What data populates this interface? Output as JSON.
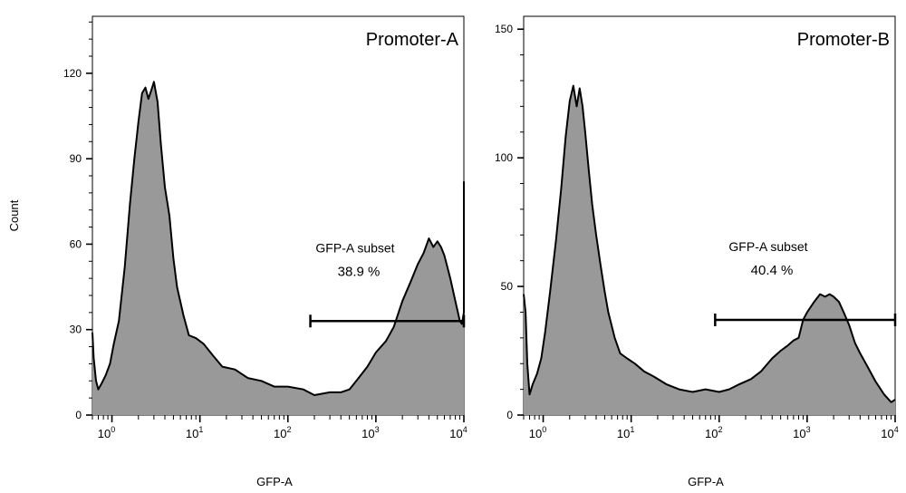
{
  "chart_data": [
    {
      "type": "area",
      "title": "Promoter-A",
      "xlabel": "GFP-A",
      "ylabel": "Count",
      "x_scale": "log",
      "xlim": [
        0.6,
        10000
      ],
      "ylim": [
        0,
        140
      ],
      "x_ticks": [
        1,
        10,
        100,
        1000,
        10000
      ],
      "x_tick_labels": [
        {
          "base": "10",
          "exp": "0"
        },
        {
          "base": "10",
          "exp": "1"
        },
        {
          "base": "10",
          "exp": "2"
        },
        {
          "base": "10",
          "exp": "3"
        },
        {
          "base": "10",
          "exp": "4"
        }
      ],
      "y_ticks": [
        0,
        30,
        60,
        90,
        120
      ],
      "y_tick_labels": [
        "0",
        "30",
        "60",
        "90",
        "120"
      ],
      "grid": false,
      "color": "#999999",
      "gate": {
        "label": "GFP-A subset",
        "percent": "38.9 %",
        "x_range": [
          180,
          10000
        ],
        "y": 33
      },
      "x": [
        0.6,
        0.62,
        0.66,
        0.7,
        0.76,
        0.85,
        0.95,
        1.05,
        1.2,
        1.4,
        1.6,
        1.8,
        2.0,
        2.2,
        2.4,
        2.6,
        2.8,
        3.0,
        3.3,
        3.6,
        4.0,
        4.5,
        5.0,
        5.5,
        6.5,
        7.5,
        9,
        11,
        14,
        18,
        25,
        35,
        50,
        70,
        100,
        150,
        200,
        300,
        400,
        500,
        600,
        800,
        1000,
        1300,
        1600,
        2000,
        2500,
        3000,
        3500,
        4000,
        4500,
        5000,
        5500,
        6000,
        7000,
        8000,
        9000,
        9500,
        10000,
        10000
      ],
      "values": [
        29,
        20,
        12,
        9,
        11,
        14,
        18,
        25,
        33,
        52,
        74,
        90,
        103,
        113,
        115,
        111,
        114,
        117,
        110,
        95,
        80,
        70,
        55,
        45,
        35,
        28,
        27,
        25,
        21,
        17,
        16,
        13,
        12,
        10,
        10,
        9,
        7,
        8,
        8,
        9,
        12,
        17,
        22,
        26,
        31,
        40,
        47,
        53,
        57,
        62,
        59,
        61,
        59,
        56,
        48,
        40,
        33,
        32,
        36,
        82
      ]
    },
    {
      "type": "area",
      "title": "Promoter-B",
      "xlabel": "GFP-A",
      "ylabel": "",
      "x_scale": "log",
      "xlim": [
        0.6,
        10000
      ],
      "ylim": [
        0,
        155
      ],
      "x_ticks": [
        1,
        10,
        100,
        1000,
        10000
      ],
      "x_tick_labels": [
        {
          "base": "10",
          "exp": "0"
        },
        {
          "base": "10",
          "exp": "1"
        },
        {
          "base": "10",
          "exp": "2"
        },
        {
          "base": "10",
          "exp": "3"
        },
        {
          "base": "10",
          "exp": "4"
        }
      ],
      "y_ticks": [
        0,
        50,
        100,
        150
      ],
      "y_tick_labels": [
        "0",
        "50",
        "100",
        "150"
      ],
      "grid": false,
      "color": "#999999",
      "gate": {
        "label": "GFP-A subset",
        "percent": "40.4 %",
        "x_range": [
          90,
          10000
        ],
        "y": 37
      },
      "x": [
        0.6,
        0.63,
        0.66,
        0.7,
        0.76,
        0.85,
        0.95,
        1.05,
        1.2,
        1.4,
        1.6,
        1.8,
        2.0,
        2.2,
        2.4,
        2.6,
        2.8,
        3.0,
        3.3,
        3.6,
        4.0,
        4.5,
        5.0,
        5.5,
        6.5,
        7.5,
        9,
        11,
        14,
        18,
        25,
        35,
        50,
        70,
        100,
        130,
        170,
        230,
        300,
        400,
        500,
        600,
        700,
        800,
        900,
        1000,
        1200,
        1400,
        1600,
        1800,
        2000,
        2300,
        2600,
        3000,
        3500,
        4000,
        5000,
        6000,
        7500,
        9000,
        10000
      ],
      "values": [
        47,
        40,
        20,
        8,
        12,
        16,
        22,
        32,
        48,
        68,
        88,
        108,
        122,
        128,
        120,
        127,
        120,
        110,
        95,
        82,
        70,
        58,
        48,
        40,
        30,
        24,
        22,
        20,
        17,
        15,
        12,
        10,
        9,
        10,
        9,
        10,
        12,
        14,
        17,
        22,
        25,
        27,
        29,
        30,
        37,
        40,
        44,
        47,
        46,
        47,
        46,
        44,
        40,
        35,
        28,
        24,
        18,
        13,
        8,
        5,
        6
      ]
    }
  ]
}
